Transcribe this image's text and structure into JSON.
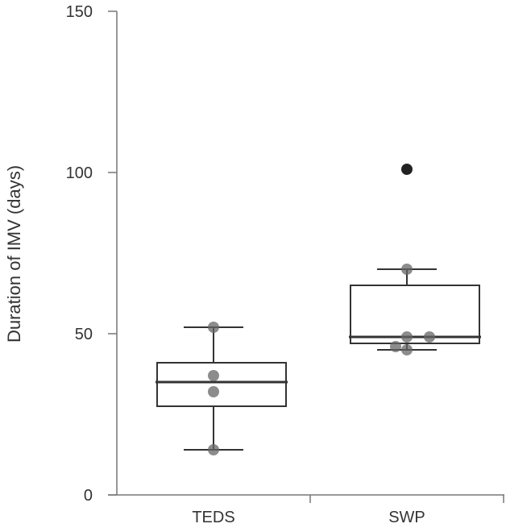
{
  "chart_data": {
    "type": "box",
    "title": "",
    "xlabel": "",
    "ylabel": "Duration of IMV (days)",
    "ylim": [
      0,
      150
    ],
    "yticks": [
      0,
      50,
      100,
      150
    ],
    "categories": [
      "TEDS",
      "SWP"
    ],
    "boxes": [
      {
        "name": "TEDS",
        "whisker_low": 14,
        "q1": 27.5,
        "median": 35,
        "q3": 41,
        "whisker_high": 52,
        "points": [
          52,
          37,
          32,
          14
        ]
      },
      {
        "name": "SWP",
        "whisker_low": 45,
        "q1": 47,
        "median": 49,
        "q3": 65,
        "whisker_high": 70,
        "points": [
          101,
          70,
          49,
          49,
          46,
          45
        ]
      }
    ],
    "grid": false,
    "legend": null
  },
  "colors": {
    "axis": "#777777",
    "box": "#333333",
    "point": "#666666",
    "outlier": "#222222"
  }
}
